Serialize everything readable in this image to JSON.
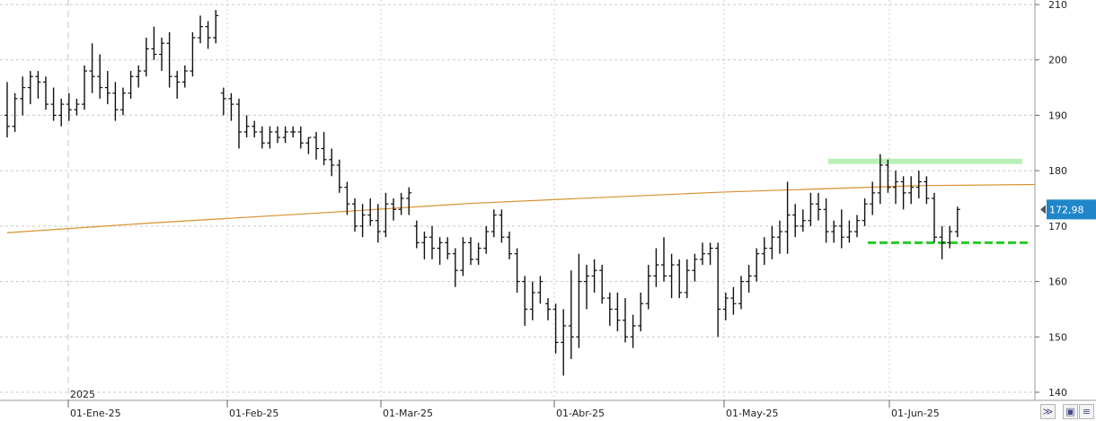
{
  "chart_data": {
    "type": "ohlc",
    "year_label": "2025",
    "last_price_label": "172,98",
    "x_tick_labels": [
      "01-Ene-25",
      "01-Feb-25",
      "01-Mar-25",
      "01-Abr-25",
      "01-May-25",
      "01-Jun-25"
    ],
    "y_tick_labels": [
      "140",
      "150",
      "160",
      "170",
      "180",
      "190",
      "200",
      "210"
    ],
    "y_ticks": [
      140,
      150,
      160,
      170,
      180,
      190,
      200,
      210
    ],
    "ylim": [
      138.3,
      211
    ],
    "grid": true,
    "bars": [
      [
        190,
        196,
        186,
        188
      ],
      [
        188,
        194,
        187,
        193
      ],
      [
        193,
        197,
        190,
        195
      ],
      [
        195,
        198,
        192,
        197
      ],
      [
        197,
        198,
        193,
        196
      ],
      [
        196,
        197,
        191,
        192
      ],
      [
        192,
        195,
        189,
        190
      ],
      [
        190,
        193,
        188,
        192
      ],
      [
        192,
        194,
        189,
        191
      ],
      [
        191,
        193,
        190,
        192
      ],
      [
        192,
        199,
        191,
        198
      ],
      [
        198,
        203,
        194,
        197
      ],
      [
        197,
        201,
        193,
        195
      ],
      [
        195,
        198,
        192,
        194
      ],
      [
        194,
        196,
        189,
        191
      ],
      [
        191,
        195,
        190,
        194
      ],
      [
        194,
        198,
        193,
        197
      ],
      [
        197,
        199,
        195,
        198
      ],
      [
        198,
        204,
        197,
        202
      ],
      [
        202,
        206,
        200,
        201
      ],
      [
        201,
        204,
        198,
        203
      ],
      [
        203,
        205,
        195,
        197
      ],
      [
        197,
        198,
        193,
        196
      ],
      [
        196,
        199,
        195,
        198
      ],
      [
        198,
        205,
        197,
        204
      ],
      [
        204,
        208,
        203,
        206
      ],
      [
        206,
        207,
        202,
        204
      ],
      [
        204,
        209,
        203,
        208
      ],
      [
        194,
        195,
        190,
        193
      ],
      [
        193,
        194,
        189,
        192
      ],
      [
        192,
        193,
        184,
        187
      ],
      [
        187,
        190,
        186,
        188
      ],
      [
        188,
        189,
        186,
        187
      ],
      [
        187,
        188,
        184,
        185
      ],
      [
        185,
        188,
        184,
        187
      ],
      [
        187,
        188,
        185,
        186
      ],
      [
        186,
        188,
        185,
        187
      ],
      [
        187,
        188,
        186,
        187
      ],
      [
        187,
        188,
        184,
        185
      ],
      [
        185,
        186,
        183,
        186
      ],
      [
        186,
        187,
        182,
        184
      ],
      [
        184,
        187,
        181,
        182
      ],
      [
        182,
        184,
        179,
        181
      ],
      [
        181,
        182,
        176,
        177
      ],
      [
        177,
        178,
        172,
        174
      ],
      [
        174,
        175,
        169,
        170
      ],
      [
        170,
        174,
        168,
        172
      ],
      [
        172,
        175,
        170,
        171
      ],
      [
        171,
        174,
        167,
        169
      ],
      [
        169,
        176,
        168,
        174
      ],
      [
        174,
        175,
        171,
        173
      ],
      [
        173,
        176,
        172,
        175
      ],
      [
        175,
        177,
        172,
        176
      ],
      [
        170,
        171,
        166,
        167
      ],
      [
        167,
        169,
        164,
        168
      ],
      [
        168,
        170,
        164,
        166
      ],
      [
        166,
        168,
        163,
        167
      ],
      [
        167,
        168,
        164,
        165
      ],
      [
        165,
        166,
        159,
        162
      ],
      [
        162,
        168,
        161,
        167
      ],
      [
        167,
        168,
        163,
        164
      ],
      [
        164,
        167,
        163,
        166
      ],
      [
        166,
        170,
        165,
        169
      ],
      [
        169,
        173,
        168,
        172
      ],
      [
        172,
        173,
        167,
        168
      ],
      [
        168,
        169,
        164,
        165
      ],
      [
        165,
        166,
        158,
        160
      ],
      [
        160,
        161,
        152,
        155
      ],
      [
        155,
        160,
        153,
        158
      ],
      [
        158,
        161,
        156,
        160
      ],
      [
        156,
        157,
        153,
        155
      ],
      [
        155,
        156,
        147,
        149
      ],
      [
        149,
        155,
        143,
        152
      ],
      [
        152,
        162,
        146,
        150
      ],
      [
        150,
        165,
        148,
        160
      ],
      [
        160,
        163,
        155,
        161
      ],
      [
        161,
        164,
        158,
        162
      ],
      [
        162,
        163,
        156,
        157
      ],
      [
        157,
        158,
        152,
        155
      ],
      [
        155,
        158,
        151,
        153
      ],
      [
        153,
        157,
        149,
        150
      ],
      [
        150,
        154,
        148,
        152
      ],
      [
        152,
        158,
        151,
        156
      ],
      [
        156,
        163,
        155,
        161
      ],
      [
        161,
        166,
        159,
        163
      ],
      [
        163,
        168,
        160,
        161
      ],
      [
        161,
        165,
        157,
        163
      ],
      [
        163,
        164,
        157,
        158
      ],
      [
        158,
        164,
        157,
        162
      ],
      [
        162,
        165,
        160,
        164
      ],
      [
        164,
        167,
        163,
        165
      ],
      [
        165,
        167,
        163,
        166
      ],
      [
        166,
        167,
        150,
        155
      ],
      [
        155,
        158,
        153,
        157
      ],
      [
        157,
        159,
        154,
        156
      ],
      [
        156,
        161,
        155,
        160
      ],
      [
        160,
        163,
        158,
        161
      ],
      [
        161,
        166,
        160,
        165
      ],
      [
        165,
        168,
        163,
        166
      ],
      [
        166,
        170,
        164,
        168
      ],
      [
        168,
        171,
        165,
        169
      ],
      [
        169,
        178,
        165,
        172
      ],
      [
        172,
        174,
        168,
        170
      ],
      [
        170,
        173,
        169,
        171
      ],
      [
        171,
        176,
        170,
        174
      ],
      [
        174,
        176,
        171,
        173
      ],
      [
        173,
        175,
        167,
        169
      ],
      [
        169,
        171,
        167,
        170
      ],
      [
        170,
        173,
        166,
        168
      ],
      [
        168,
        171,
        167,
        169
      ],
      [
        169,
        172,
        168,
        171
      ],
      [
        171,
        175,
        170,
        174
      ],
      [
        174,
        178,
        172,
        176
      ],
      [
        176,
        183,
        174,
        181
      ],
      [
        181,
        182,
        176,
        177
      ],
      [
        177,
        180,
        174,
        178
      ],
      [
        178,
        179,
        173,
        176
      ],
      [
        176,
        179,
        174,
        177
      ],
      [
        177,
        180,
        175,
        178
      ],
      [
        178,
        179,
        174,
        175
      ],
      [
        175,
        176,
        167,
        168
      ],
      [
        168,
        170,
        164,
        167
      ],
      [
        167,
        170,
        166,
        169
      ],
      [
        169,
        173.5,
        168,
        173
      ]
    ],
    "moving_average": [
      [
        0,
        168.8
      ],
      [
        18,
        170.5
      ],
      [
        42,
        172.5
      ],
      [
        60,
        174.1
      ],
      [
        92,
        176.1
      ],
      [
        118,
        177.3
      ],
      [
        133,
        177.5
      ],
      [
        158,
        177.2
      ],
      [
        180,
        176.6
      ],
      [
        205,
        175.5
      ],
      [
        233,
        174.1
      ],
      [
        248,
        173.6
      ],
      [
        263,
        173.4
      ],
      [
        280,
        173.3
      ]
    ],
    "resistance_level": 182,
    "support_level": 167
  }
}
